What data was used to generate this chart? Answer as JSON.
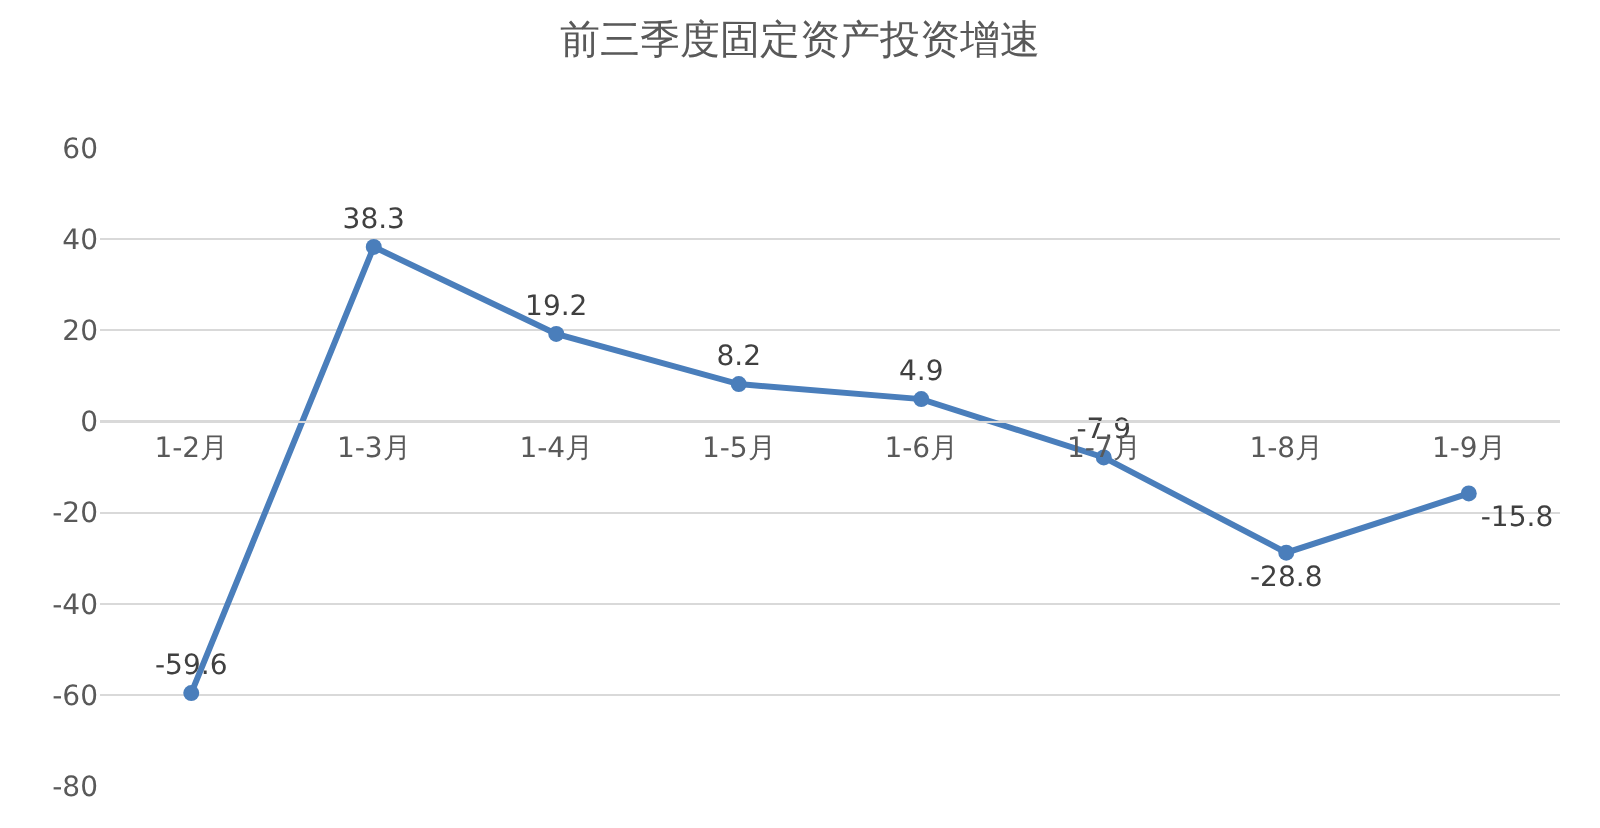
{
  "chart_data": {
    "type": "line",
    "title": "前三季度固定资产投资增速",
    "categories": [
      "1-2月",
      "1-3月",
      "1-4月",
      "1-5月",
      "1-6月",
      "1-7月",
      "1-8月",
      "1-9月"
    ],
    "series": [
      {
        "color": "#4a7ebb",
        "values": [
          -59.6,
          38.3,
          19.2,
          8.2,
          4.9,
          -7.9,
          -28.8,
          -15.8
        ]
      }
    ],
    "ylim": [
      -80,
      60
    ],
    "yticks": [
      -80,
      -60,
      -40,
      -20,
      0,
      20,
      40,
      60
    ],
    "grid": "y",
    "marker": "circle",
    "line_style": "solid",
    "data_labels": true,
    "legend": false
  }
}
